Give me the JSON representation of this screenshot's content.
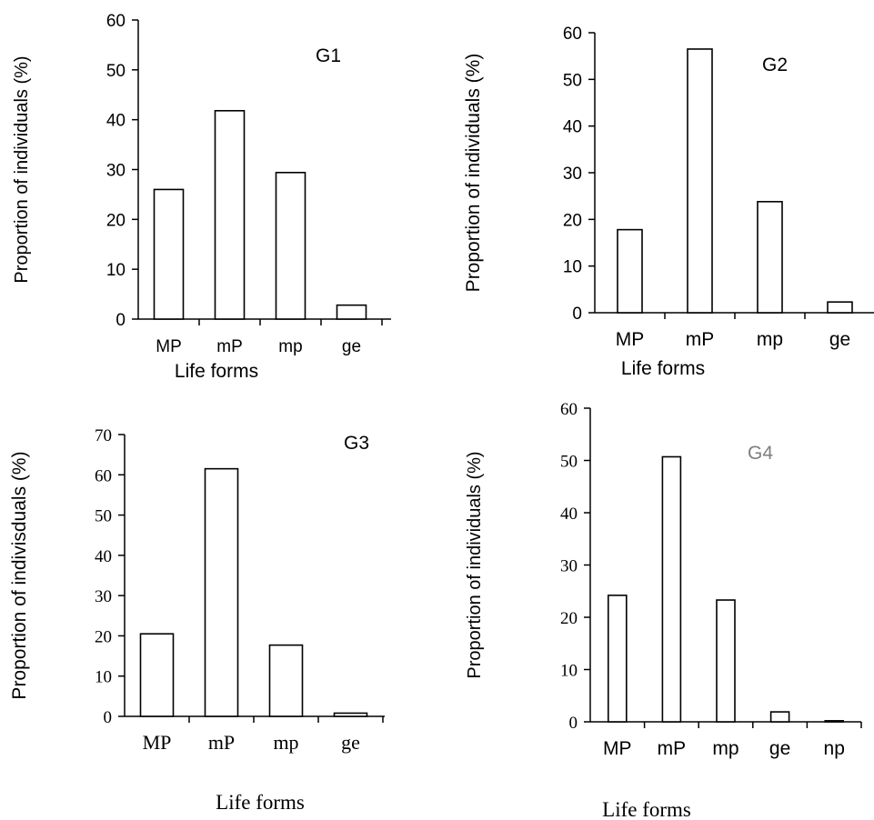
{
  "chart_data": [
    {
      "type": "bar",
      "panel_label": "G1",
      "categories": [
        "MP",
        "mP",
        "mp",
        "ge"
      ],
      "values": [
        26,
        41.8,
        29.4,
        2.8
      ],
      "xlabel": "Life forms",
      "ylabel": "Proportion of individuals  (%)",
      "ylim": [
        0,
        60
      ],
      "yticks": [
        "0",
        "10",
        "20",
        "30",
        "40",
        "50",
        "60"
      ],
      "grid": false,
      "legend": "none"
    },
    {
      "type": "bar",
      "panel_label": "G2",
      "categories": [
        "MP",
        "mP",
        "mp",
        "ge"
      ],
      "values": [
        17.8,
        56.5,
        23.8,
        2.3
      ],
      "xlabel": "Life forms",
      "ylabel": "Proportion of individuals  (%)",
      "ylim": [
        0,
        60
      ],
      "yticks": [
        "0",
        "10",
        "20",
        "30",
        "40",
        "50",
        "60"
      ],
      "grid": false,
      "legend": "none"
    },
    {
      "type": "bar",
      "panel_label": "G3",
      "categories": [
        "MP",
        "mP",
        "mp",
        "ge"
      ],
      "values": [
        20.5,
        61.5,
        17.7,
        0.8
      ],
      "xlabel": "Life forms",
      "ylabel": "Proportion of indivisduals  (%)",
      "ylim": [
        0,
        70
      ],
      "yticks": [
        "0",
        "10",
        "20",
        "30",
        "40",
        "50",
        "60",
        "70"
      ],
      "grid": false,
      "legend": "none"
    },
    {
      "type": "bar",
      "panel_label": "G4",
      "panel_label_color": "#7f7f7f",
      "categories": [
        "MP",
        "mP",
        "mp",
        "ge",
        "np"
      ],
      "values": [
        24.2,
        50.7,
        23.3,
        1.9,
        0.2
      ],
      "xlabel": "Life forms",
      "ylabel": "Proportion of individuals  (%)",
      "ylim": [
        0,
        60
      ],
      "yticks": [
        "0",
        "10",
        "20",
        "30",
        "40",
        "50",
        "60"
      ],
      "grid": false,
      "legend": "none"
    }
  ]
}
